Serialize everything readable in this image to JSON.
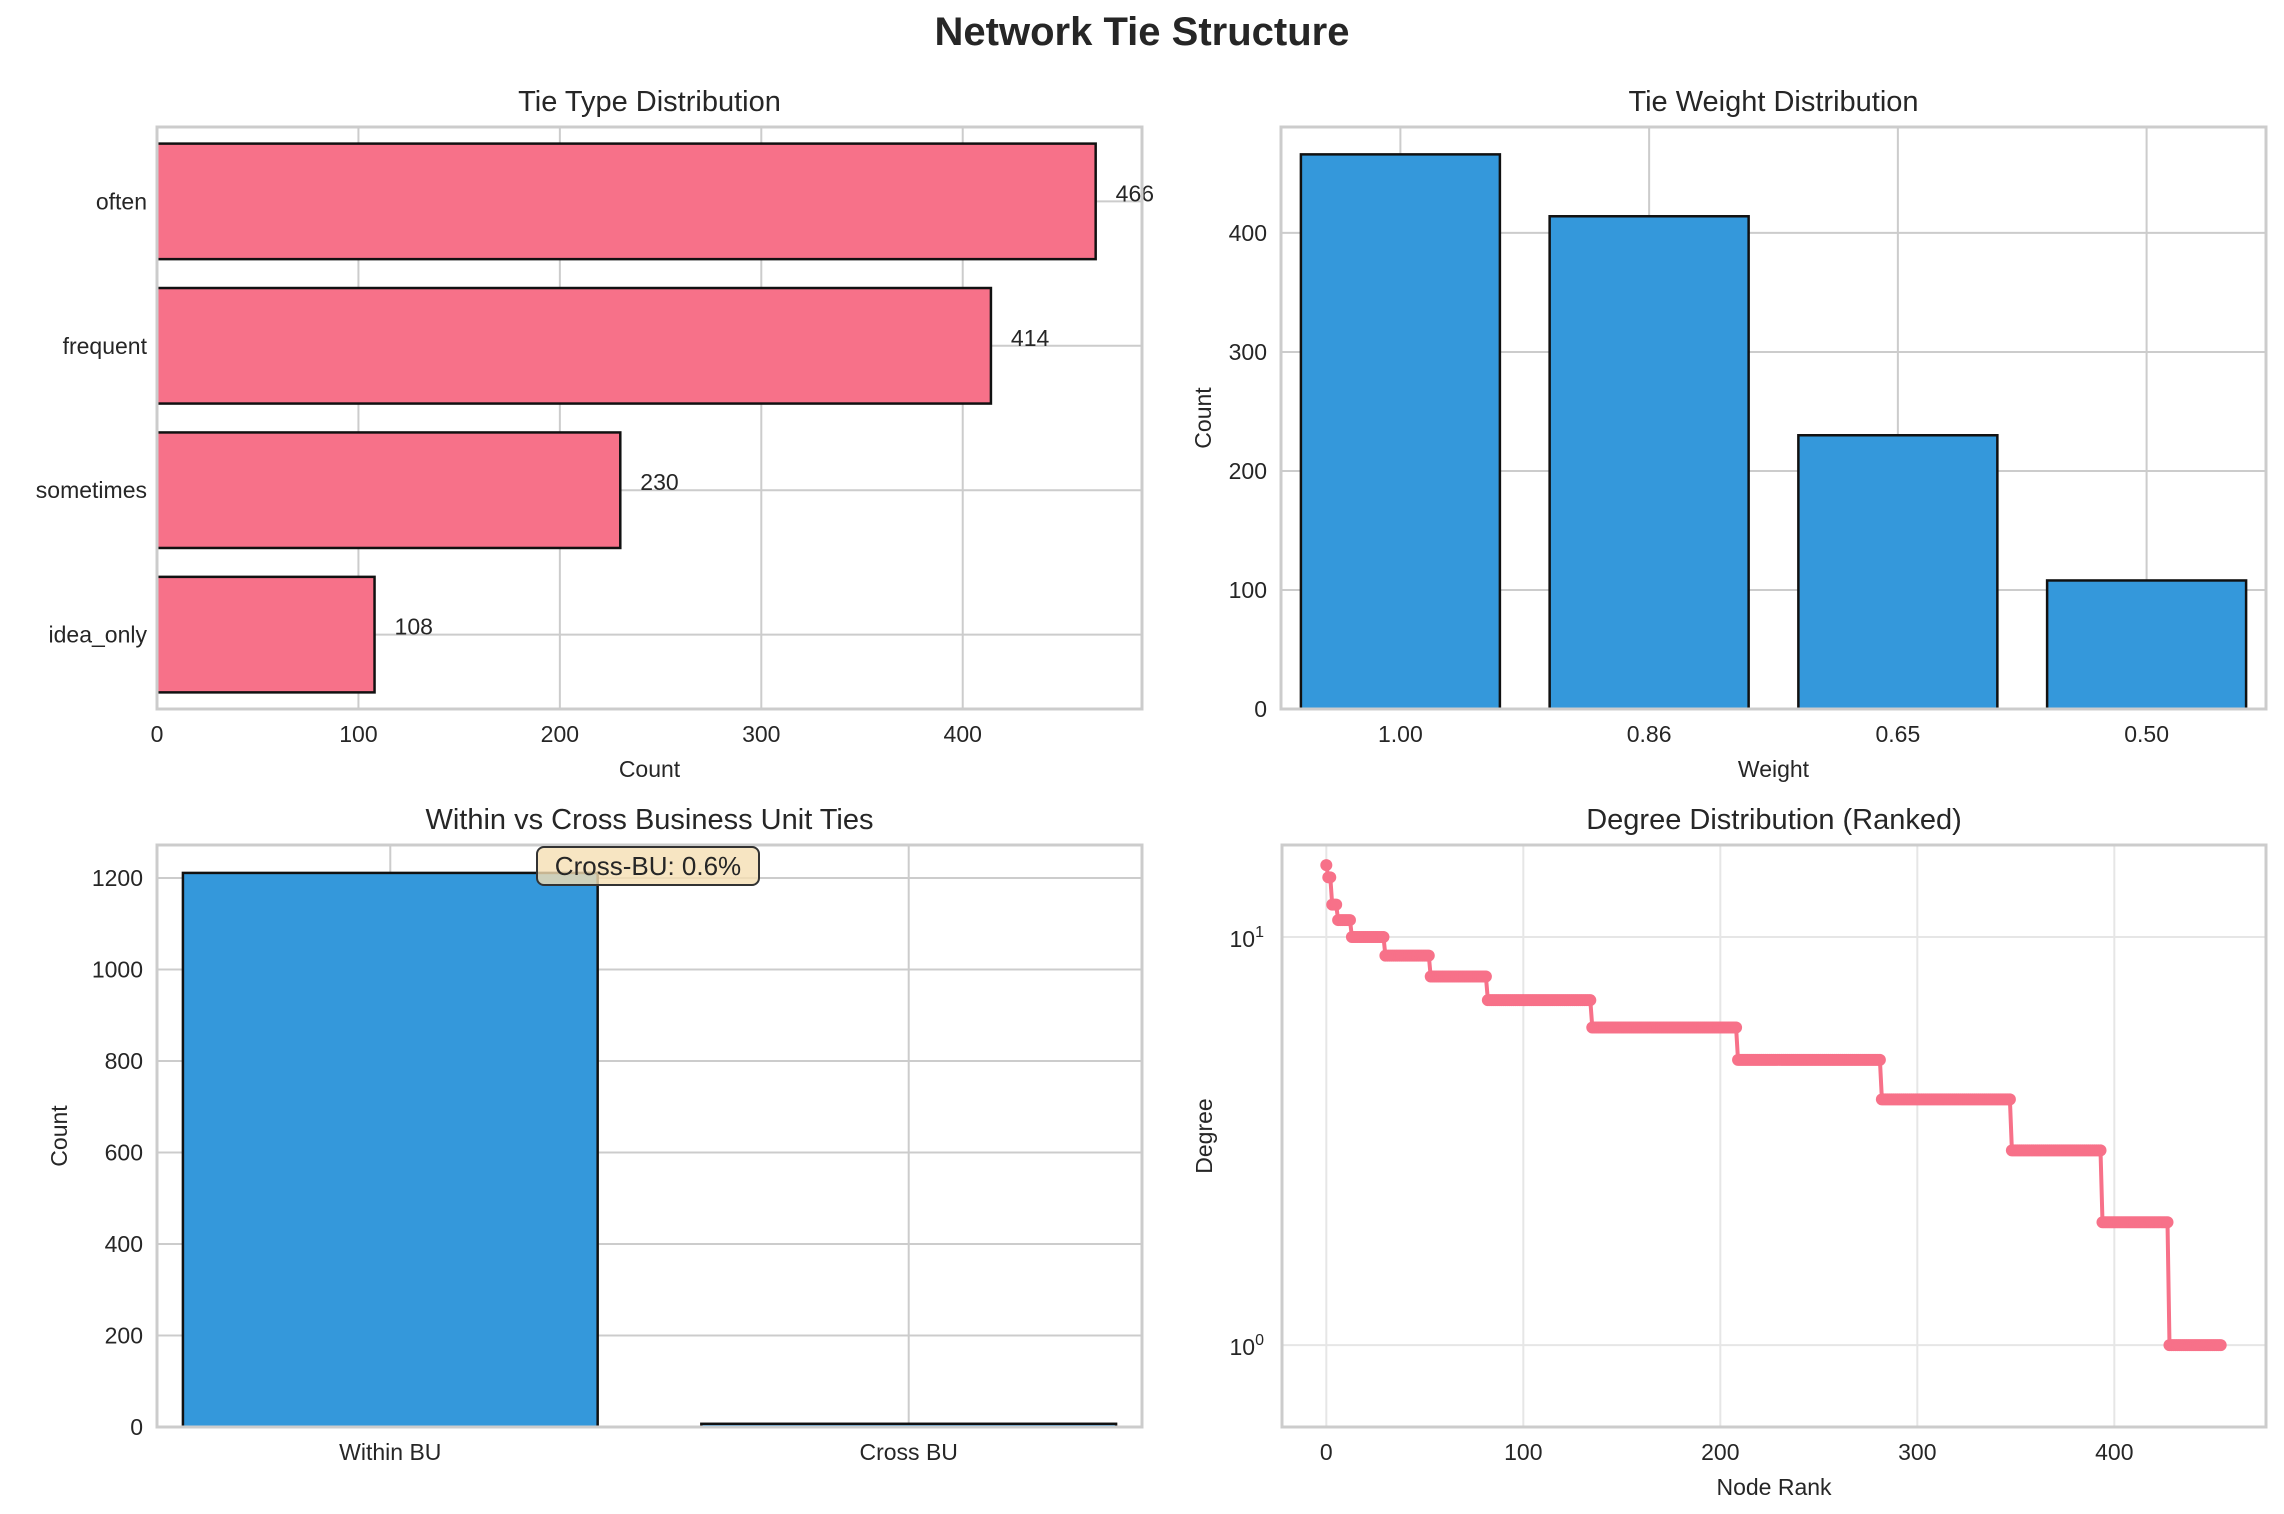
{
  "figure": {
    "title": "Network Tie Structure"
  },
  "colors": {
    "pink": "#f77189",
    "blue": "#3498db",
    "edge": "#111111",
    "grid": "#cccccc",
    "grid_light": "#e6e6e6",
    "annotation_bg": "#f5deb3"
  },
  "chart_data": [
    {
      "id": "tie-type",
      "type": "bar",
      "orientation": "horizontal",
      "title": "Tie Type Distribution",
      "xlabel": "Count",
      "ylabel": "",
      "categories": [
        "often",
        "frequent",
        "sometimes",
        "idea_only"
      ],
      "values": [
        466,
        414,
        230,
        108
      ],
      "value_labels": [
        "466",
        "414",
        "230",
        "108"
      ],
      "xlim": [
        0,
        489
      ],
      "xticks": [
        0,
        100,
        200,
        300,
        400
      ],
      "grid": true,
      "color": "pink"
    },
    {
      "id": "tie-weight",
      "type": "bar",
      "title": "Tie Weight Distribution",
      "xlabel": "Weight",
      "ylabel": "Count",
      "categories": [
        "1.00",
        "0.86",
        "0.65",
        "0.50"
      ],
      "values": [
        466,
        414,
        230,
        108
      ],
      "ylim": [
        0,
        489
      ],
      "yticks": [
        0,
        100,
        200,
        300,
        400
      ],
      "grid": true,
      "color": "blue"
    },
    {
      "id": "within-cross",
      "type": "bar",
      "title": "Within vs Cross Business Unit Ties",
      "xlabel": "",
      "ylabel": "Count",
      "categories": [
        "Within BU",
        "Cross BU"
      ],
      "values": [
        1211,
        7
      ],
      "ylim": [
        0,
        1272
      ],
      "yticks": [
        0,
        200,
        400,
        600,
        800,
        1000,
        1200
      ],
      "annotation": "Cross-BU: 0.6%",
      "grid": true,
      "color": "blue"
    },
    {
      "id": "degree",
      "type": "line",
      "title": "Degree Distribution (Ranked)",
      "xlabel": "Node Rank",
      "ylabel": "Degree",
      "yscale": "log",
      "xlim": [
        -22.5,
        477
      ],
      "ylim": [
        0.63,
        16.8
      ],
      "xticks": [
        0,
        100,
        200,
        300,
        400
      ],
      "yticks": [
        {
          "value": 1,
          "base": "10",
          "exp": "0"
        },
        {
          "value": 10,
          "base": "10",
          "exp": "1"
        }
      ],
      "steps": [
        {
          "degree": 15,
          "from_rank": 0,
          "to_rank": 0
        },
        {
          "degree": 14,
          "from_rank": 1,
          "to_rank": 2
        },
        {
          "degree": 12,
          "from_rank": 3,
          "to_rank": 5
        },
        {
          "degree": 11,
          "from_rank": 6,
          "to_rank": 12
        },
        {
          "degree": 10,
          "from_rank": 13,
          "to_rank": 29
        },
        {
          "degree": 9,
          "from_rank": 30,
          "to_rank": 52
        },
        {
          "degree": 8,
          "from_rank": 53,
          "to_rank": 81
        },
        {
          "degree": 7,
          "from_rank": 82,
          "to_rank": 134
        },
        {
          "degree": 6,
          "from_rank": 135,
          "to_rank": 208
        },
        {
          "degree": 5,
          "from_rank": 209,
          "to_rank": 281
        },
        {
          "degree": 4,
          "from_rank": 282,
          "to_rank": 347
        },
        {
          "degree": 3,
          "from_rank": 348,
          "to_rank": 393
        },
        {
          "degree": 2,
          "from_rank": 394,
          "to_rank": 427
        },
        {
          "degree": 1,
          "from_rank": 428,
          "to_rank": 454
        }
      ],
      "grid": true,
      "color": "pink"
    }
  ]
}
